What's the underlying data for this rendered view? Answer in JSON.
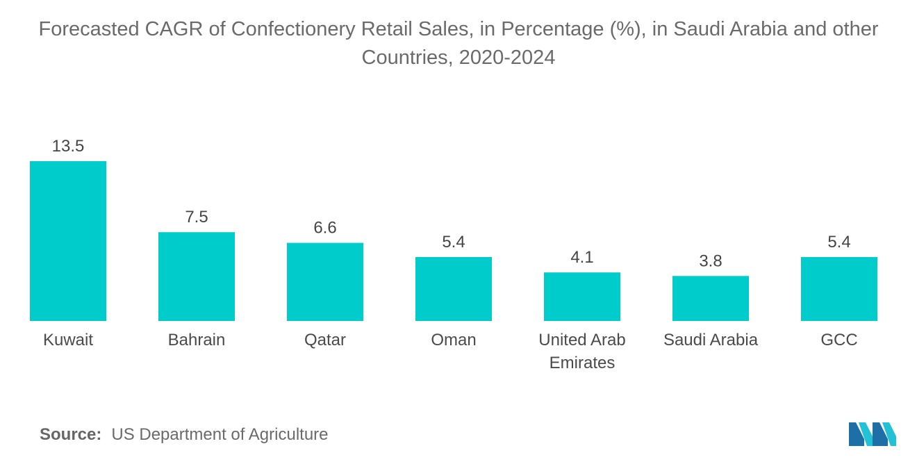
{
  "chart_data": {
    "type": "bar",
    "title": "Forecasted CAGR of Confectionery Retail Sales, in Percentage (%), in Saudi Arabia and other Countries, 2020-2024",
    "title_lines": [
      "Forecasted CAGR of Confectionery Retail Sales, in Percentage (%), in Saudi Arabia and other",
      "Countries, 2020-2024"
    ],
    "categories": [
      "Kuwait",
      "Bahrain",
      "Qatar",
      "Oman",
      "United Arab Emirates",
      "Saudi Arabia",
      "GCC"
    ],
    "category_lines": [
      [
        "Kuwait"
      ],
      [
        "Bahrain"
      ],
      [
        "Qatar"
      ],
      [
        "Oman"
      ],
      [
        "United Arab",
        "Emirates"
      ],
      [
        "Saudi Arabia"
      ],
      [
        "GCC"
      ]
    ],
    "values": [
      13.5,
      7.5,
      6.6,
      5.4,
      4.1,
      3.8,
      5.4
    ],
    "value_labels": [
      "13.5",
      "7.5",
      "6.6",
      "5.4",
      "4.1",
      "3.8",
      "5.4"
    ],
    "xlabel": "",
    "ylabel": "",
    "ylim": [
      0,
      13.5
    ],
    "grid": false,
    "bar_color": "#00CCCC"
  },
  "source": {
    "label": "Source:",
    "text": "US Department of Agriculture"
  },
  "logo": {
    "icon": "mordor-intelligence-logo-icon",
    "color_dark": "#1d6fa5",
    "color_light": "#22c1d6"
  }
}
